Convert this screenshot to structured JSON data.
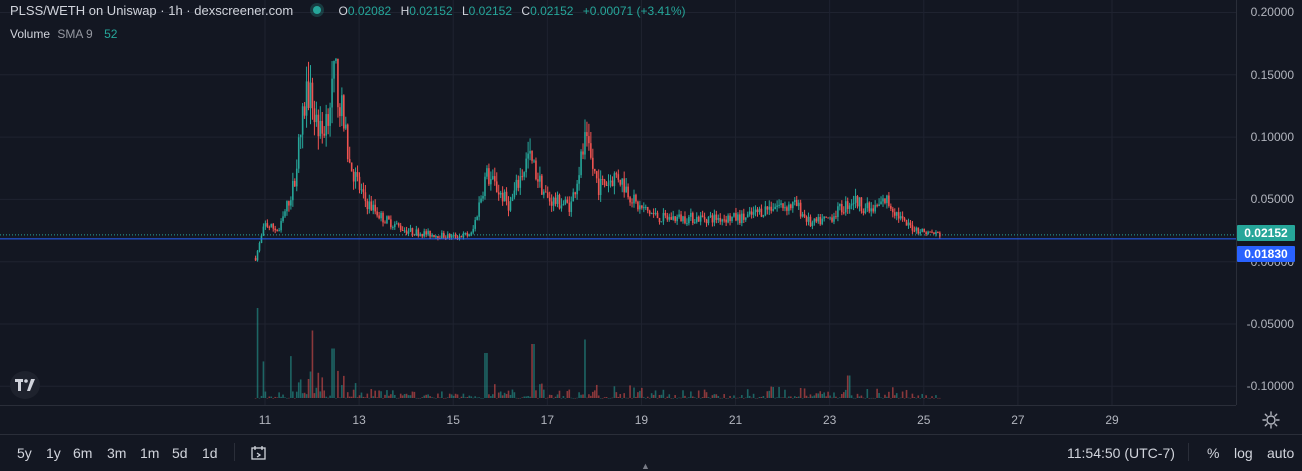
{
  "legend": {
    "title": "PLSS/WETH on Uniswap · 1h · dexscreener.com",
    "open_label": "O",
    "open": "0.02082",
    "high_label": "H",
    "high": "0.02152",
    "low_label": "L",
    "low": "0.02152",
    "close_label": "C",
    "close": "0.02152",
    "change": "+0.00071 (+3.41%)"
  },
  "volume_legend": {
    "label": "Volume",
    "indicator": "SMA 9",
    "value": "52"
  },
  "price_tags": {
    "last": "0.02152",
    "line": "0.01830"
  },
  "colors": {
    "up": "#26a69a",
    "down": "#ef5350",
    "line": "#2962ff",
    "background": "#131722"
  },
  "toolbar": {
    "ranges": [
      "5y",
      "1y",
      "6m",
      "3m",
      "1m",
      "5d",
      "1d"
    ],
    "time": "11:54:50 (UTC-7)",
    "percent": "%",
    "log": "log",
    "auto": "auto"
  },
  "chart_data": {
    "type": "candlestick",
    "timeframe": "1h",
    "y_ticks": [
      "0.20000",
      "0.15000",
      "0.10000",
      "0.05000",
      "0.00000",
      "-0.05000",
      "-0.10000"
    ],
    "y_tick_values": [
      0.2,
      0.15,
      0.1,
      0.05,
      0.0,
      -0.05,
      -0.1
    ],
    "x_ticks": [
      "11",
      "13",
      "15",
      "17",
      "19",
      "21",
      "23",
      "25",
      "27",
      "29"
    ],
    "x_tick_days": [
      11,
      13,
      15,
      17,
      19,
      21,
      23,
      25,
      27,
      29
    ],
    "ylim": [
      -0.115,
      0.21
    ],
    "last_price": 0.02152,
    "horizontal_line": 0.0183,
    "price_series_day_close": [
      [
        10.8,
        0.003
      ],
      [
        11.0,
        0.03
      ],
      [
        11.3,
        0.025
      ],
      [
        11.6,
        0.06
      ],
      [
        11.9,
        0.14
      ],
      [
        12.2,
        0.1
      ],
      [
        12.5,
        0.15
      ],
      [
        12.8,
        0.08
      ],
      [
        13.1,
        0.05
      ],
      [
        13.5,
        0.035
      ],
      [
        14.0,
        0.025
      ],
      [
        14.5,
        0.022
      ],
      [
        15.0,
        0.02
      ],
      [
        15.4,
        0.022
      ],
      [
        15.7,
        0.07
      ],
      [
        16.2,
        0.045
      ],
      [
        16.6,
        0.085
      ],
      [
        17.0,
        0.05
      ],
      [
        17.5,
        0.045
      ],
      [
        17.8,
        0.095
      ],
      [
        18.1,
        0.06
      ],
      [
        18.5,
        0.07
      ],
      [
        18.9,
        0.045
      ],
      [
        19.4,
        0.035
      ],
      [
        20.0,
        0.035
      ],
      [
        20.6,
        0.035
      ],
      [
        21.2,
        0.035
      ],
      [
        21.8,
        0.045
      ],
      [
        22.3,
        0.045
      ],
      [
        22.6,
        0.03
      ],
      [
        23.0,
        0.035
      ],
      [
        23.5,
        0.05
      ],
      [
        23.9,
        0.04
      ],
      [
        24.2,
        0.05
      ],
      [
        24.6,
        0.03
      ],
      [
        25.0,
        0.024
      ],
      [
        25.4,
        0.0215
      ]
    ],
    "volume_spikes": [
      [
        10.85,
        1.0
      ],
      [
        12.0,
        0.75
      ],
      [
        12.45,
        0.55
      ],
      [
        16.7,
        0.6
      ],
      [
        17.8,
        0.65
      ],
      [
        15.7,
        0.5
      ],
      [
        23.4,
        0.25
      ]
    ]
  }
}
